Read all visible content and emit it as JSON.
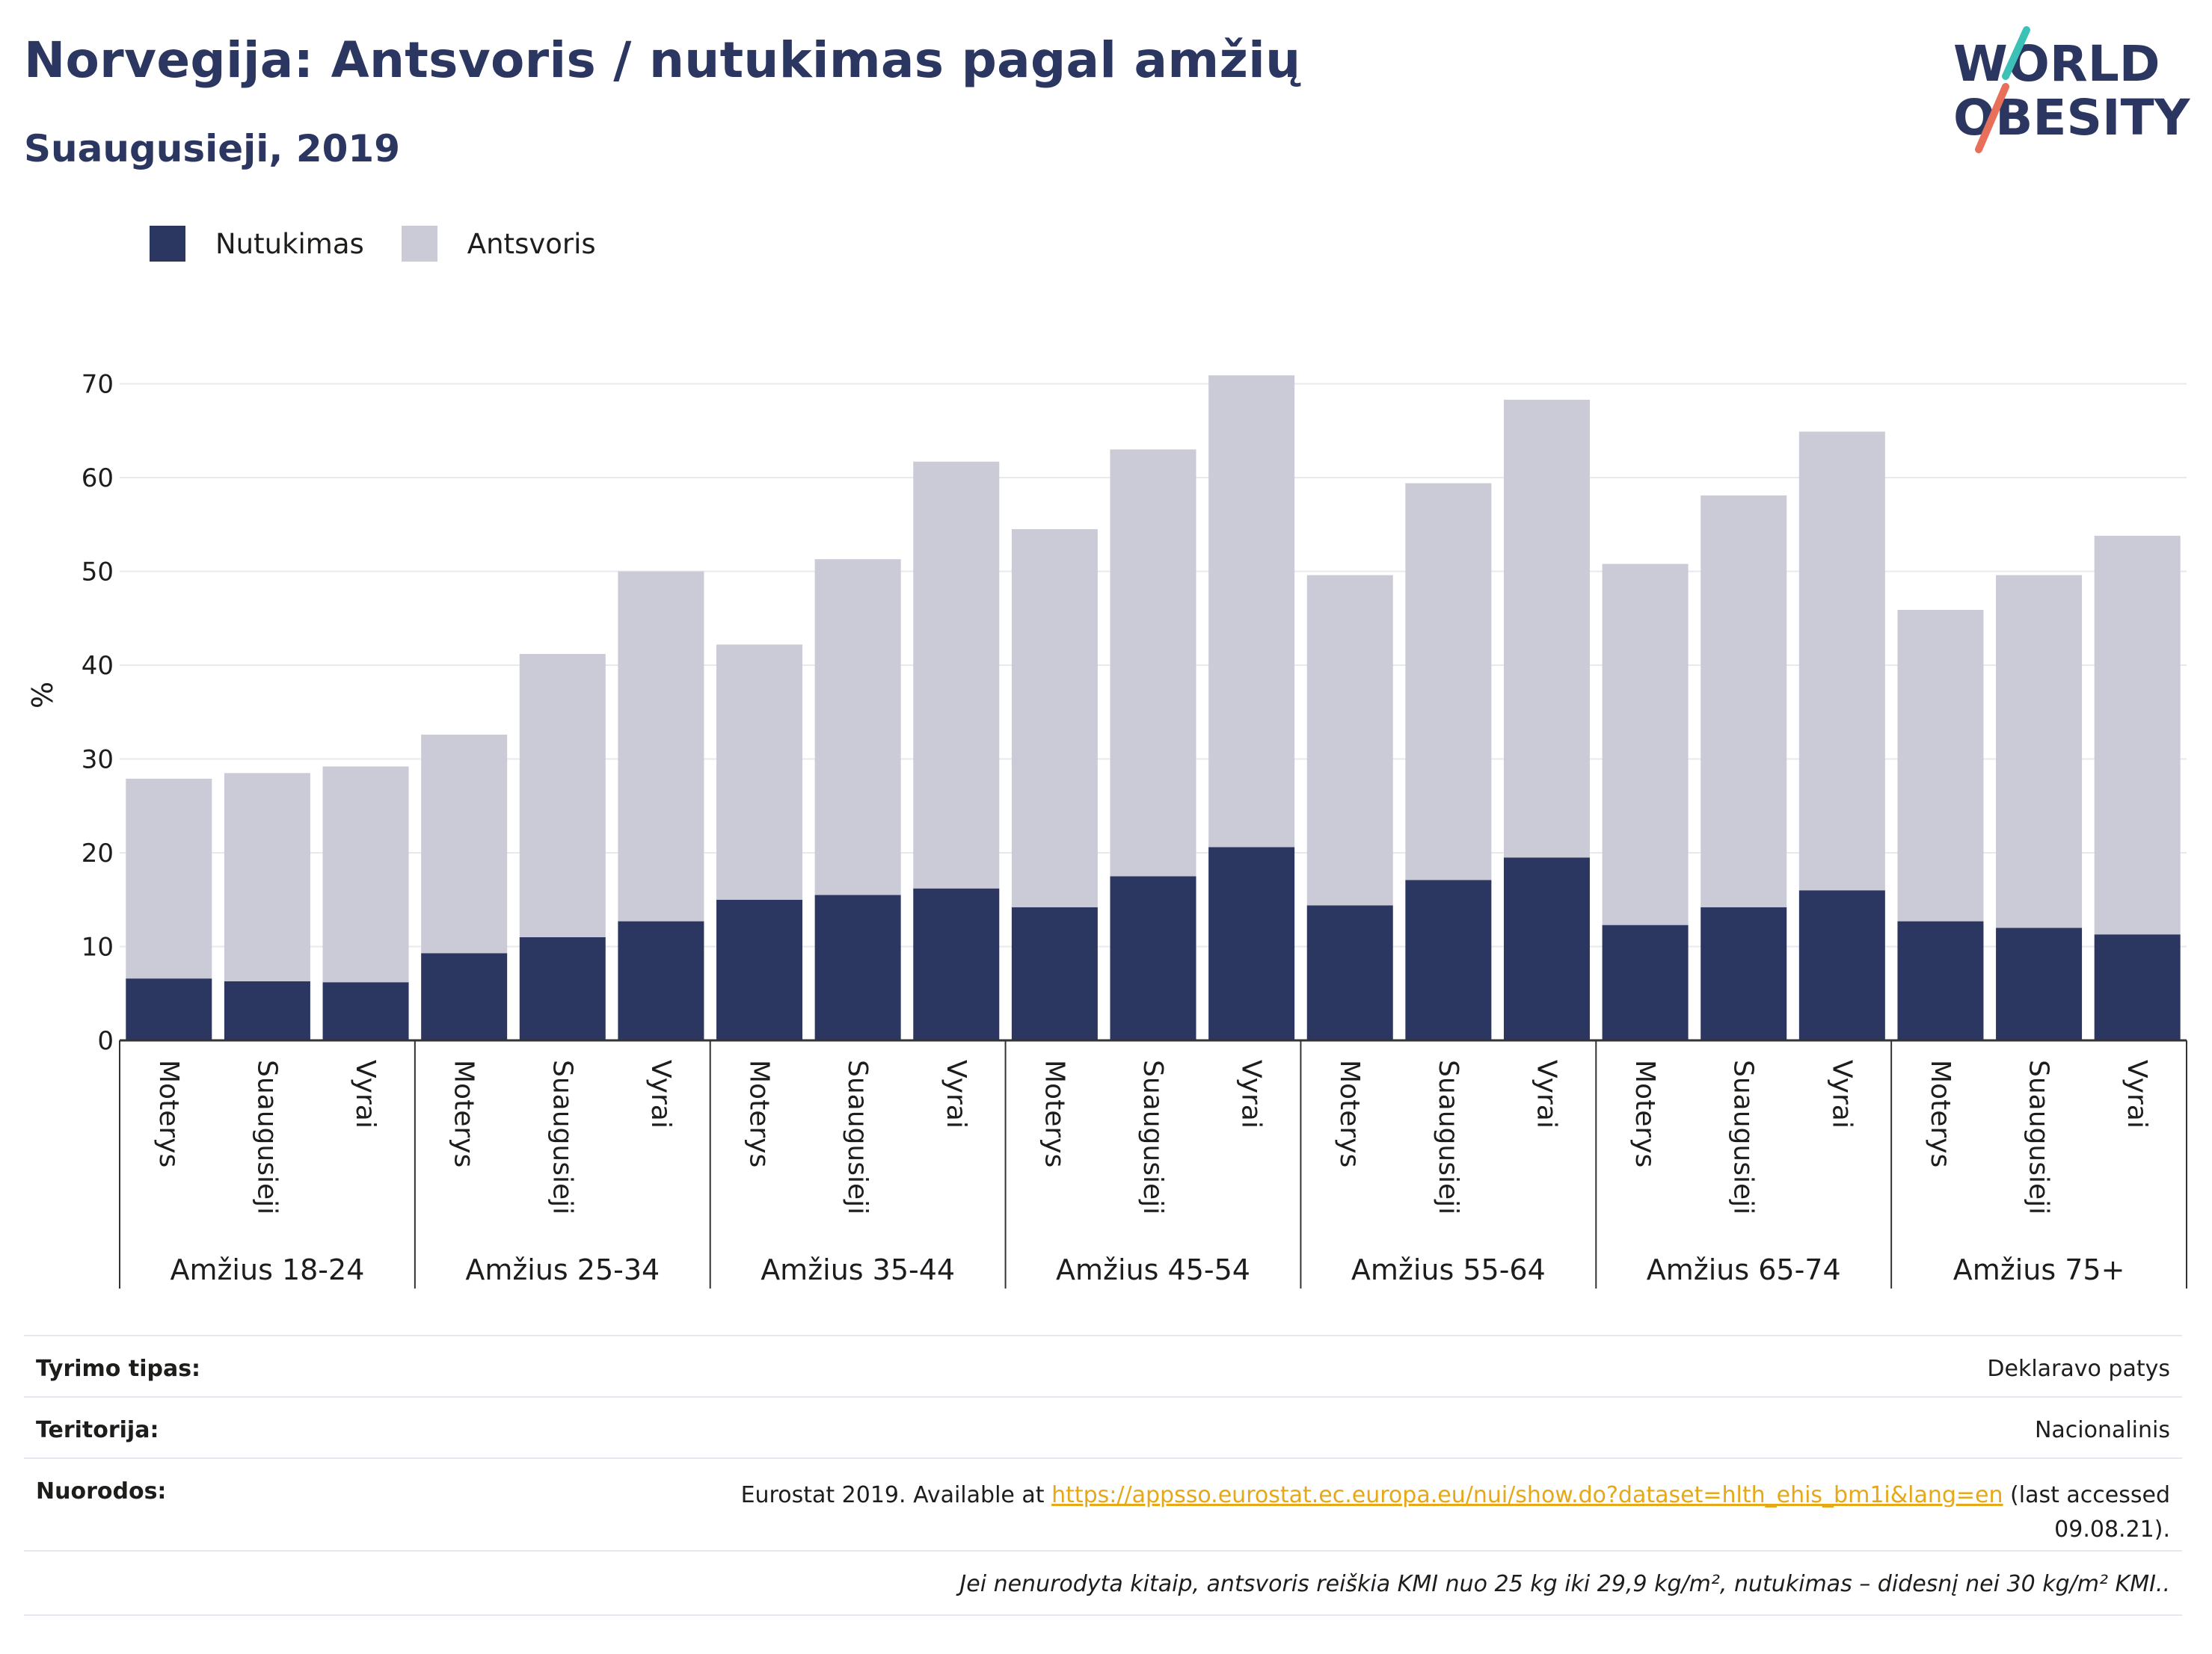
{
  "header": {
    "title": "Norvegija: Antsvoris / nutukimas pagal amžių",
    "subtitle": "Suaugusieji, 2019"
  },
  "logo": {
    "line1": "WORLD",
    "line2": "OBESITY",
    "accent_colors": [
      "#3cc1b7",
      "#e8705a"
    ]
  },
  "legend": [
    {
      "label": "Nutukimas",
      "color": "#2b3661"
    },
    {
      "label": "Antsvoris",
      "color": "#cacbd6"
    }
  ],
  "chart_data": {
    "type": "bar",
    "stacked": true,
    "ylabel": "%",
    "ylim": [
      0,
      75
    ],
    "yticks": [
      0,
      10,
      20,
      30,
      40,
      50,
      60,
      70
    ],
    "grid": true,
    "legend_position": "top-left",
    "groups": [
      "Amžius 18-24",
      "Amžius 25-34",
      "Amžius 35-44",
      "Amžius 45-54",
      "Amžius 55-64",
      "Amžius 65-74",
      "Amžius 75+"
    ],
    "subcategories": [
      "Moterys",
      "Suaugusieji",
      "Vyrai"
    ],
    "series": [
      {
        "name": "Nutukimas",
        "color": "#2b3661",
        "values": [
          6.6,
          6.3,
          6.2,
          9.3,
          11.0,
          12.7,
          15.0,
          15.5,
          16.2,
          14.2,
          17.5,
          20.6,
          14.4,
          17.1,
          19.5,
          12.3,
          14.2,
          16.0,
          12.7,
          12.0,
          11.3
        ]
      },
      {
        "name": "Antsvoris",
        "color": "#cacbd6",
        "values": [
          21.3,
          22.2,
          23.0,
          23.3,
          30.2,
          37.3,
          27.2,
          35.8,
          45.5,
          40.3,
          45.5,
          50.3,
          35.2,
          42.3,
          48.8,
          38.5,
          43.9,
          48.9,
          33.2,
          37.6,
          42.5
        ]
      }
    ],
    "totals": [
      27.9,
      28.5,
      29.2,
      32.6,
      41.2,
      50.0,
      42.2,
      51.3,
      61.7,
      54.5,
      63.0,
      70.9,
      49.6,
      59.4,
      68.3,
      50.8,
      58.1,
      64.9,
      45.9,
      49.6,
      53.8
    ]
  },
  "info": {
    "rows": [
      {
        "key": "Tyrimo tipas:",
        "value": "Deklaravo patys"
      },
      {
        "key": "Teritorija:",
        "value": "Nacionalinis"
      }
    ],
    "refs": {
      "key": "Nuorodos:",
      "pre": "Eurostat 2019. Available at ",
      "link": "https://appsso.eurostat.ec.europa.eu/nui/show.do?dataset=hlth_ehis_bm1i&lang=en",
      "post": " (last accessed",
      "post2": "09.08.21)."
    },
    "note": "Jei nenurodyta kitaip, antsvoris reiškia KMI nuo 25 kg iki 29,9 kg/m², nutukimas – didesnį nei 30 kg/m² KMI.."
  }
}
